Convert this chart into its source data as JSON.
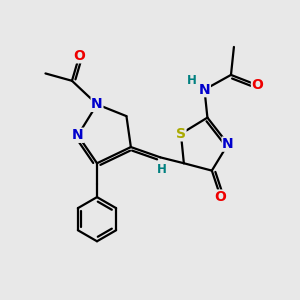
{
  "bg_color": "#e8e8e8",
  "atom_colors": {
    "C": "#000000",
    "N": "#0000cc",
    "O": "#ee0000",
    "S": "#aaaa00",
    "H": "#008080"
  },
  "bond_color": "#000000",
  "bond_width": 1.6,
  "font_size_atom": 10,
  "font_size_H": 8.5
}
